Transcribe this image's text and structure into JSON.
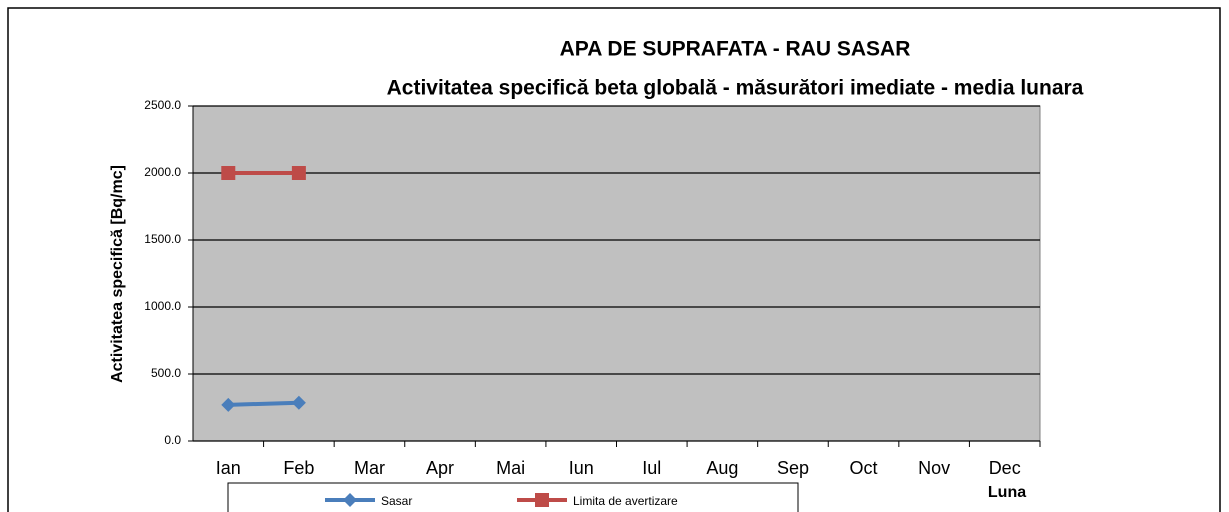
{
  "chart_data": {
    "type": "line",
    "title": "APA DE SUPRAFATA - RAU SASAR",
    "subtitle": "Activitatea specifică beta globală - măsurători imediate - media lunara",
    "y_label": "Activitatea specifică [Bq/mc]",
    "x_label": "Luna",
    "categories": [
      "Ian",
      "Feb",
      "Mar",
      "Apr",
      "Mai",
      "Iun",
      "Iul",
      "Aug",
      "Sep",
      "Oct",
      "Nov",
      "Dec"
    ],
    "series": [
      {
        "name": "Sasar",
        "color": "#4a7ebb",
        "marker": "diamond",
        "values": [
          270,
          285,
          null,
          null,
          null,
          null,
          null,
          null,
          null,
          null,
          null,
          null
        ]
      },
      {
        "name": "Limita de avertizare",
        "color": "#be4b48",
        "marker": "square",
        "values": [
          2000,
          2000,
          null,
          null,
          null,
          null,
          null,
          null,
          null,
          null,
          null,
          null
        ]
      }
    ],
    "ylim": [
      0,
      2500
    ],
    "yticks": [
      {
        "value": 0,
        "label": "0.0"
      },
      {
        "value": 500,
        "label": "500.0"
      },
      {
        "value": 1000,
        "label": "1000.0"
      },
      {
        "value": 1500,
        "label": "1500.0"
      },
      {
        "value": 2000,
        "label": "2000.0"
      },
      {
        "value": 2500,
        "label": "2500.0"
      }
    ],
    "grid": true,
    "legend": "bottom"
  }
}
